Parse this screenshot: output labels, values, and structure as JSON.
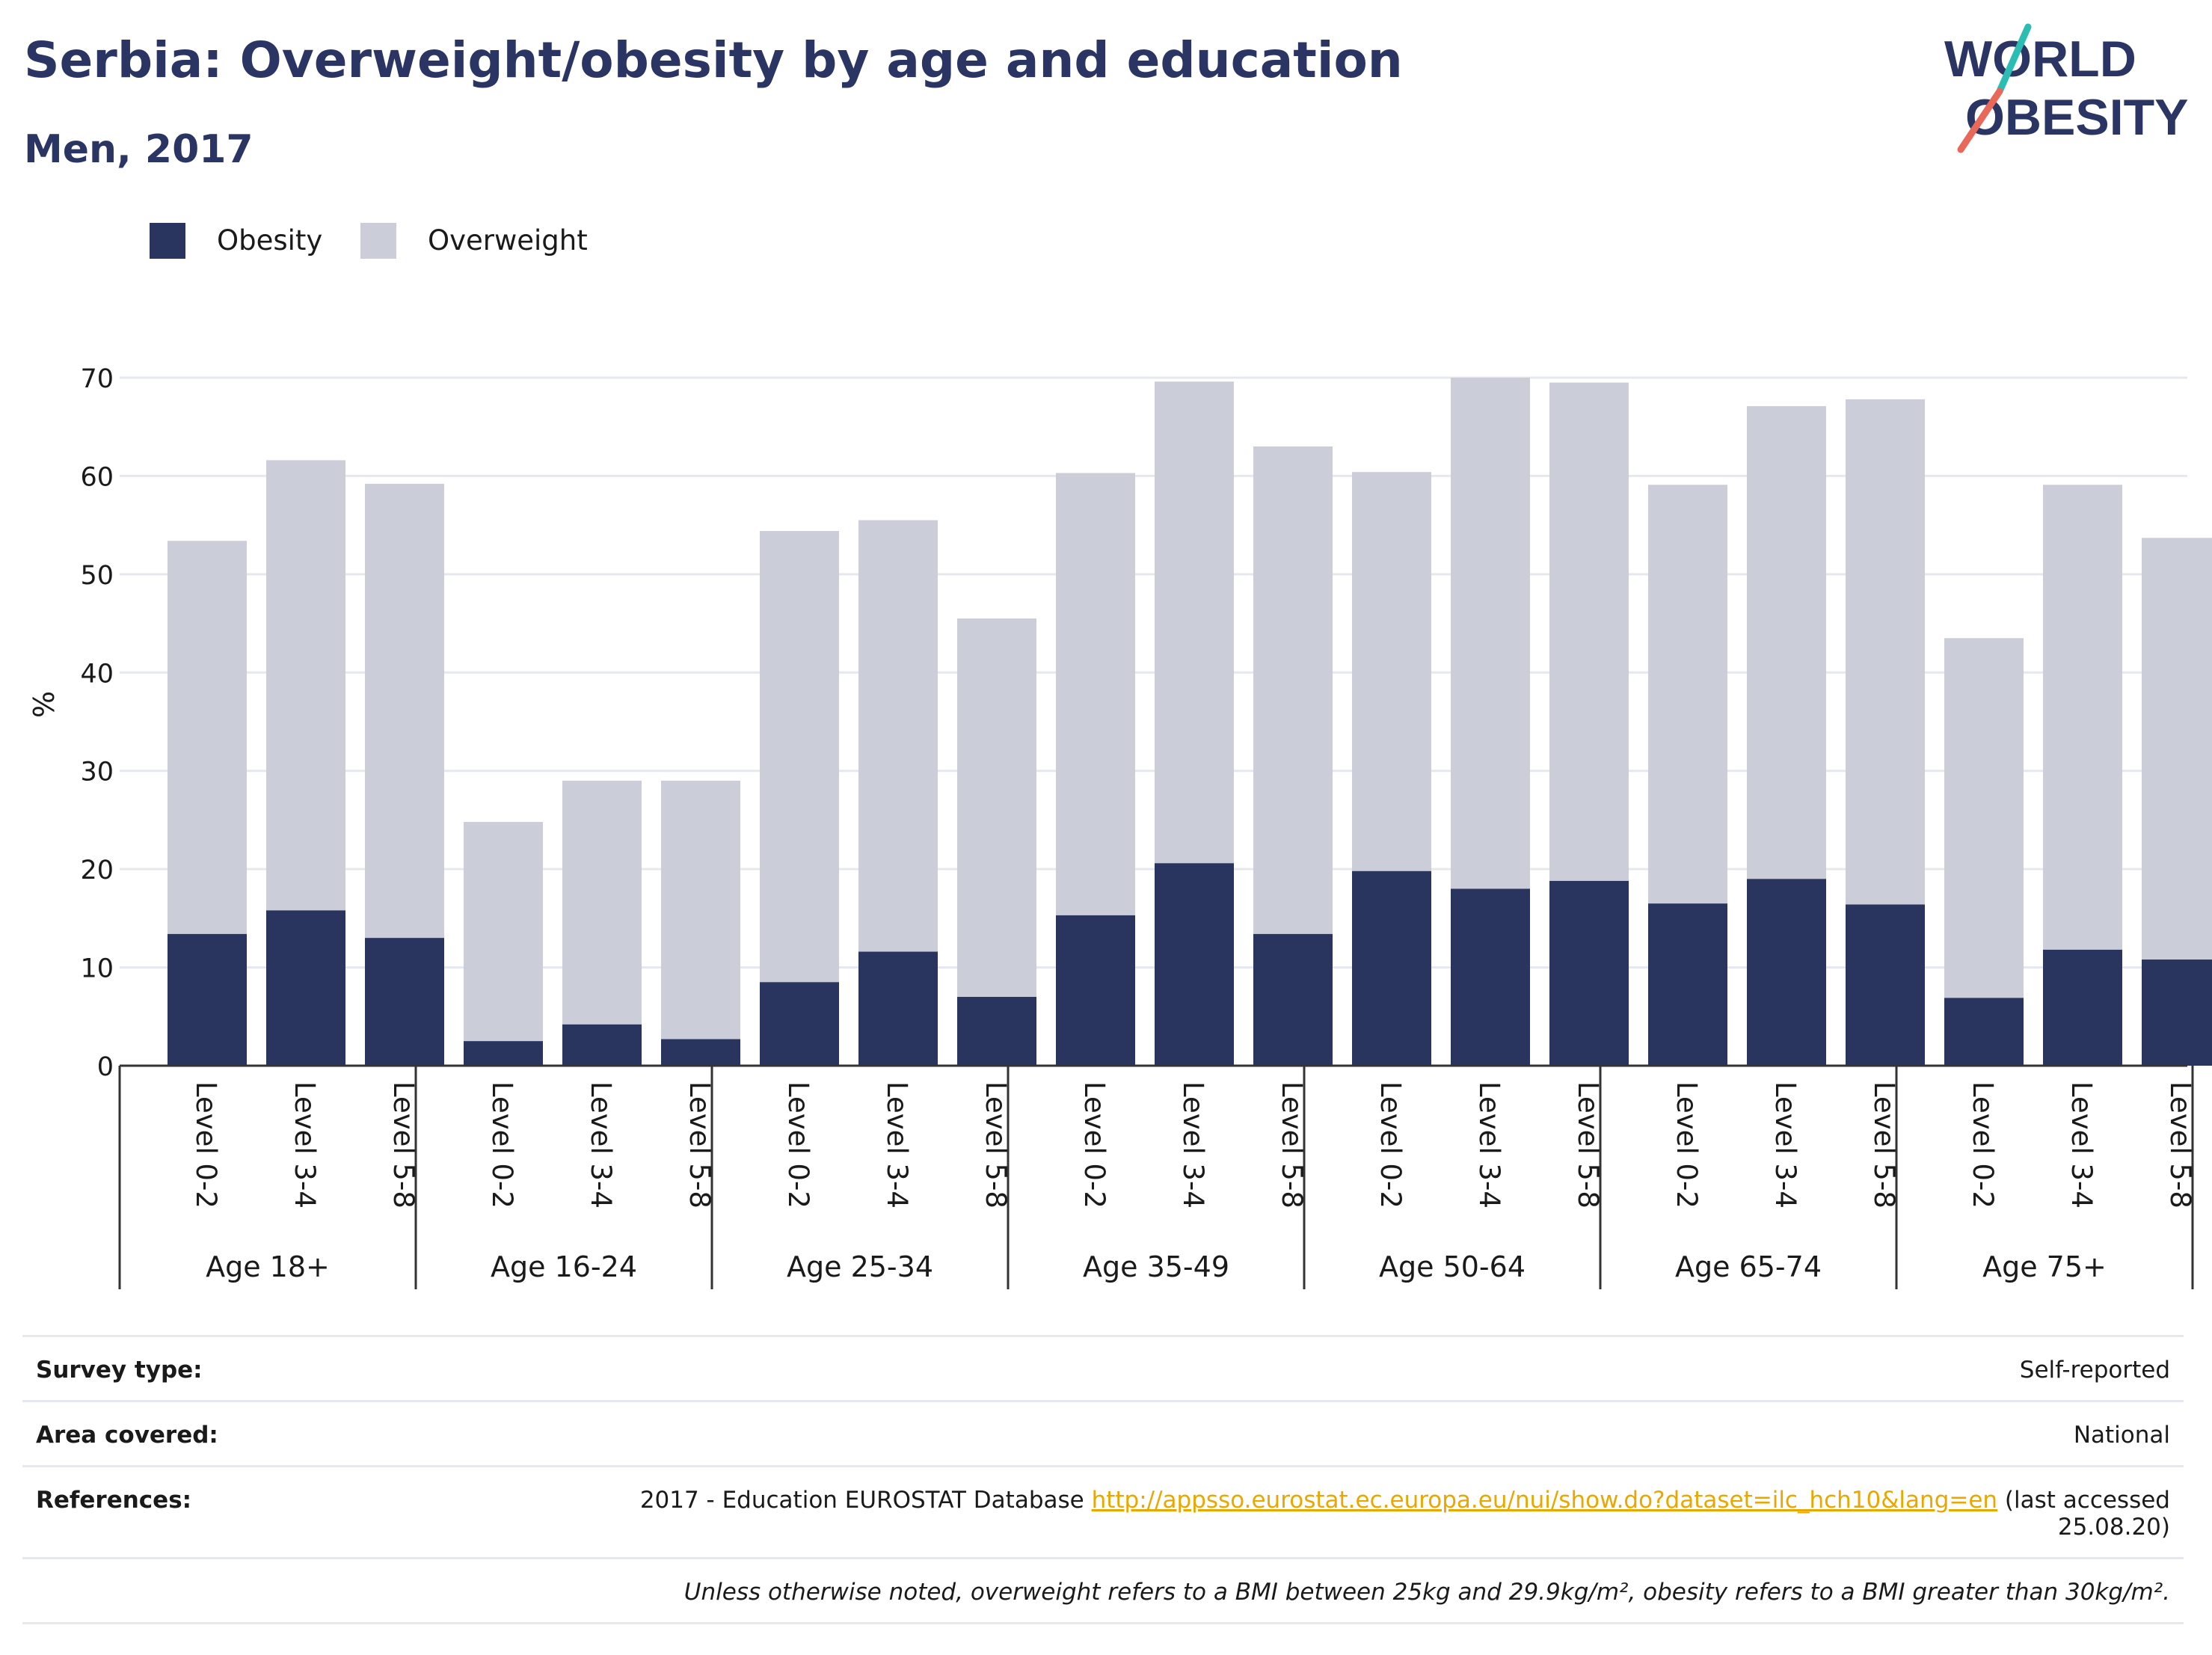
{
  "header": {
    "title": "Serbia: Overweight/obesity by age and education",
    "subtitle": "Men, 2017"
  },
  "logo": {
    "line1": "WORLD",
    "line2": "OBESITY"
  },
  "colors": {
    "obesity": "#29345f",
    "overweight": "#cbcdd9",
    "grid": "#e6e8ef",
    "accent_teal": "#2bbcb4",
    "accent_coral": "#e8685a",
    "link": "#e9a800"
  },
  "legend": [
    {
      "label": "Obesity",
      "color": "#29345f"
    },
    {
      "label": "Overweight",
      "color": "#cbcdd9"
    }
  ],
  "chart_data": {
    "type": "bar",
    "stacked": true,
    "title": "Serbia: Overweight/obesity by age and education",
    "subtitle": "Men, 2017",
    "ylabel": "%",
    "ylim": [
      0,
      70
    ],
    "yticks": [
      0,
      10,
      20,
      30,
      40,
      50,
      60,
      70
    ],
    "grid": true,
    "legend_position": "top-left",
    "groups": [
      {
        "name": "Age 18+",
        "categories": [
          "Level 0-2",
          "Level 3-4",
          "Level 5-8"
        ]
      },
      {
        "name": "Age 16-24",
        "categories": [
          "Level 0-2",
          "Level 3-4",
          "Level 5-8"
        ]
      },
      {
        "name": "Age 25-34",
        "categories": [
          "Level 0-2",
          "Level 3-4",
          "Level 5-8"
        ]
      },
      {
        "name": "Age 35-49",
        "categories": [
          "Level 0-2",
          "Level 3-4",
          "Level 5-8"
        ]
      },
      {
        "name": "Age 50-64",
        "categories": [
          "Level 0-2",
          "Level 3-4",
          "Level 5-8"
        ]
      },
      {
        "name": "Age 65-74",
        "categories": [
          "Level 0-2",
          "Level 3-4",
          "Level 5-8"
        ]
      },
      {
        "name": "Age 75+",
        "categories": [
          "Level 0-2",
          "Level 3-4",
          "Level 5-8"
        ]
      }
    ],
    "series": [
      {
        "name": "Obesity",
        "color": "#29345f",
        "values": [
          13.4,
          15.8,
          13.0,
          2.5,
          4.2,
          2.7,
          8.5,
          11.6,
          7.0,
          15.3,
          20.6,
          13.4,
          19.8,
          18.0,
          18.8,
          16.5,
          19.0,
          16.4,
          6.9,
          11.8,
          10.8
        ]
      },
      {
        "name": "Overweight",
        "color": "#cbcdd9",
        "values": [
          40.0,
          45.8,
          46.2,
          22.3,
          24.8,
          26.3,
          45.9,
          43.9,
          38.5,
          45.0,
          49.0,
          49.6,
          40.6,
          52.0,
          50.7,
          42.6,
          48.1,
          51.4,
          36.6,
          47.3,
          42.9
        ]
      }
    ]
  },
  "info": {
    "survey_type": {
      "key": "Survey type:",
      "value": "Self-reported"
    },
    "area_covered": {
      "key": "Area covered:",
      "value": "National"
    },
    "references": {
      "key": "References:",
      "prefix": "2017 - Education EUROSTAT Database ",
      "link": "http://appsso.eurostat.ec.europa.eu/nui/show.do?dataset=ilc_hch10&lang=en",
      "suffix": " (last accessed 25.08.20)"
    },
    "footnote": "Unless otherwise noted, overweight refers to a BMI between 25kg and 29.9kg/m², obesity refers to a BMI greater than 30kg/m²."
  }
}
